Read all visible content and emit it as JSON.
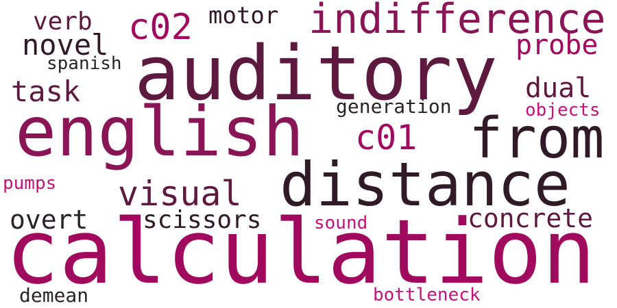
{
  "palette": {
    "magenta": "#a0095e",
    "plum": "#8a1556",
    "wine": "#5e1a3e",
    "aubergine": "#2f1a26",
    "charcoal": "#2a2228",
    "pink": "#c01478",
    "background": "#ffffff"
  },
  "words": [
    {
      "text": "calculation",
      "color": "magenta"
    },
    {
      "text": "auditory",
      "color": "wine"
    },
    {
      "text": "english",
      "color": "plum"
    },
    {
      "text": "distance",
      "color": "aubergine"
    },
    {
      "text": "from",
      "color": "aubergine"
    },
    {
      "text": "indifference",
      "color": "plum"
    },
    {
      "text": "visual",
      "color": "wine"
    },
    {
      "text": "c02",
      "color": "magenta"
    },
    {
      "text": "c01",
      "color": "magenta"
    },
    {
      "text": "concrete",
      "color": "wine"
    },
    {
      "text": "scissors",
      "color": "aubergine"
    },
    {
      "text": "probe",
      "color": "magenta"
    },
    {
      "text": "dual",
      "color": "wine"
    },
    {
      "text": "novel",
      "color": "aubergine"
    },
    {
      "text": "task",
      "color": "wine"
    },
    {
      "text": "overt",
      "color": "charcoal"
    },
    {
      "text": "motor",
      "color": "aubergine"
    },
    {
      "text": "verb",
      "color": "wine"
    },
    {
      "text": "generation",
      "color": "charcoal"
    },
    {
      "text": "spanish",
      "color": "charcoal"
    },
    {
      "text": "objects",
      "color": "pink"
    },
    {
      "text": "pumps",
      "color": "pink"
    },
    {
      "text": "sound",
      "color": "pink"
    },
    {
      "text": "bottleneck",
      "color": "pink"
    },
    {
      "text": "demean",
      "color": "charcoal"
    }
  ]
}
